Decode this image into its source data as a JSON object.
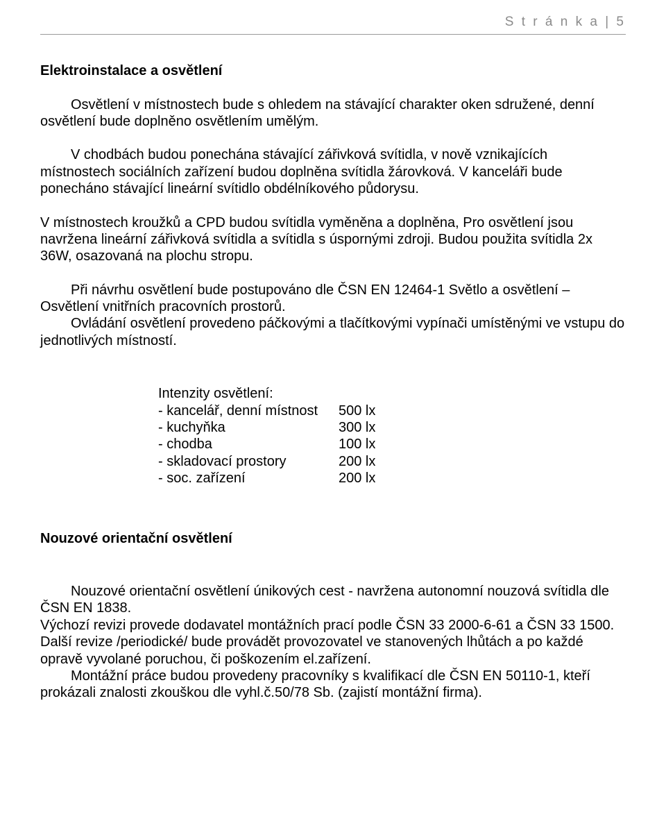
{
  "header": {
    "pageLabel": "S t r á n k a  | 5"
  },
  "sections": {
    "main": {
      "title": "Elektroinstalace a osvětlení",
      "p1_first": "Osvětlení v místnostech bude s ohledem na stávající charakter oken sdružené, denní osvětlení bude doplněno osvětlením umělým.",
      "p2_first": "V chodbách budou ponechána stávající zářivková svítidla, v nově vznikajících místnostech sociálních zařízení budou doplněna svítidla žárovková. V kanceláři bude ponecháno stávající lineární svítidlo obdélníkového půdorysu.",
      "p3": "V místnostech kroužků a CPD budou svítidla vyměněna a doplněna, Pro osvětlení jsou navržena lineární zářivková svítidla a svítidla s úspornými zdroji. Budou použita svítidla 2x 36W, osazovaná na plochu stropu.",
      "p4_first": "Při návrhu osvětlení bude postupováno dle ČSN EN 12464-1 Světlo a osvětlení – Osvětlení vnitřních pracovních prostorů.",
      "p4_second": "Ovládání osvětlení provedeno páčkovými a tlačítkovými vypínači umístěnými ve vstupu do jednotlivých místností."
    },
    "intensity": {
      "label": "Intenzity osvětlení:",
      "rows": [
        {
          "name": "- kancelář, denní místnost",
          "val": "500 lx"
        },
        {
          "name": "- kuchyňka",
          "val": "300 lx"
        },
        {
          "name": "- chodba",
          "val": "100 lx"
        },
        {
          "name": "- skladovací prostory",
          "val": "200 lx"
        },
        {
          "name": "- soc. zařízení",
          "val": "200 lx"
        }
      ]
    },
    "emergency": {
      "title": "Nouzové orientační osvětlení",
      "p1_first": "Nouzové orientační osvětlení únikových cest - navržena autonomní nouzová svítidla dle ČSN EN 1838.",
      "p2": "Výchozí revizi provede dodavatel montážních prací podle  ČSN 33 2000-6-61 a ČSN 33 1500. Další revize /periodické/ bude provádět provozovatel ve stanovených lhůtách a po každé opravě vyvolané poruchou, či poškozením el.zařízení.",
      "p3_first": "Montážní práce budou provedeny pracovníky s kvalifikací dle ČSN EN 50110-1, kteří prokázali znalosti zkouškou dle vyhl.č.50/78 Sb. (zajistí montážní firma)."
    }
  }
}
